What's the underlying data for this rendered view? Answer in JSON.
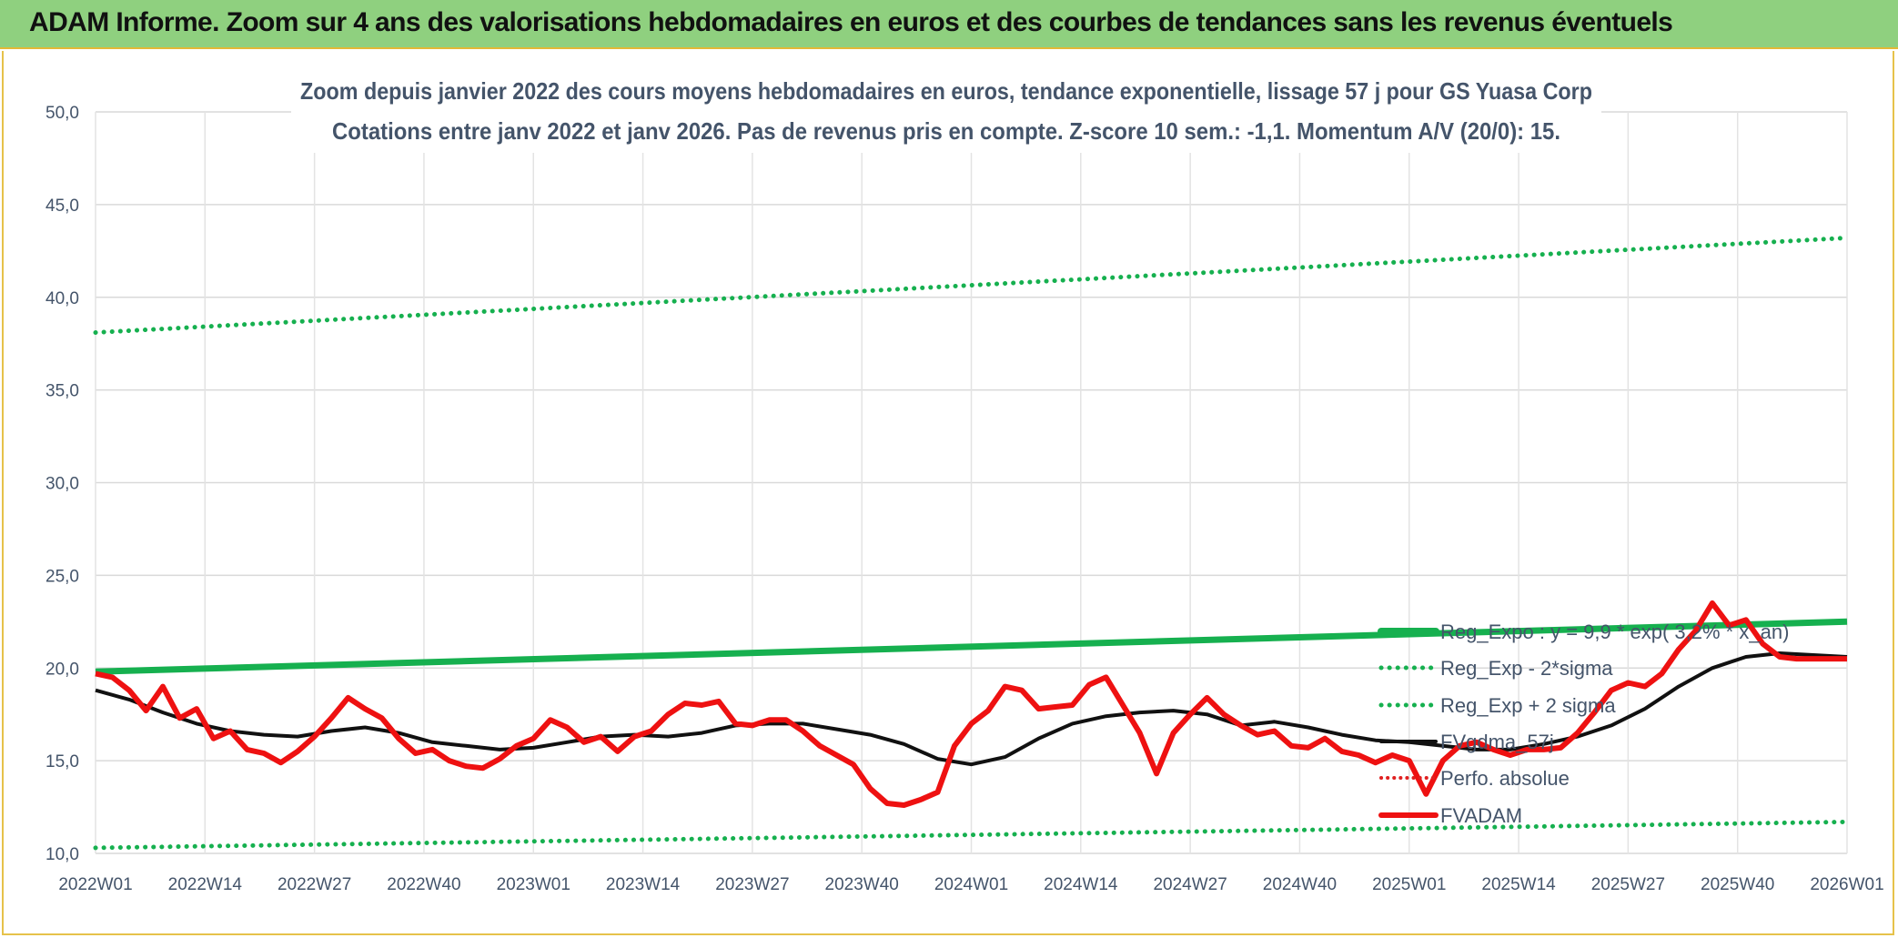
{
  "banner": {
    "title": "ADAM Informe. Zoom sur 4 ans des valorisations hebdomadaires en euros et des courbes de tendances sans les revenus éventuels"
  },
  "colors": {
    "banner": "#8fd07f",
    "regExpo": "#16b04f",
    "fvadam": "#ee1111",
    "mma": "#111111",
    "perfo": "#e02020",
    "text": "#44546a"
  },
  "chart_data": {
    "type": "line",
    "title": "Zoom depuis janvier 2022 des cours moyens hebdomadaires en euros, tendance exponentielle, lissage 57 j pour GS Yuasa Corp",
    "subtitle": "Cotations entre janv 2022 et janv 2026. Pas de revenus pris en compte. Z-score 10 sem.: -1,1. Momentum A/V (20/0): 15.",
    "xlabel": "",
    "ylabel": "",
    "ylim": [
      10,
      50
    ],
    "yticks": [
      "10,0",
      "15,0",
      "20,0",
      "25,0",
      "30,0",
      "35,0",
      "40,0",
      "45,0",
      "50,0"
    ],
    "xticks": [
      "2022W01",
      "2022W14",
      "2022W27",
      "2022W40",
      "2023W01",
      "2023W14",
      "2023W27",
      "2023W40",
      "2024W01",
      "2024W14",
      "2024W27",
      "2024W40",
      "2025W01",
      "2025W14",
      "2025W27",
      "2025W40",
      "2026W01"
    ],
    "grid": true,
    "legend": [
      "Reg_Expo : y = 9,9 * exp( 3,2% * x_an)",
      "Reg_Exp - 2*sigma",
      "Reg_Exp + 2 sigma",
      "FVgdma_57j",
      "Perfo. absolue",
      "FVADAM"
    ],
    "series": [
      {
        "name": "Reg_Expo : y = 9,9 * exp( 3,2% * x_an)",
        "style": "thick-solid",
        "x": [
          0,
          208
        ],
        "values": [
          19.8,
          22.5
        ]
      },
      {
        "name": "Reg_Exp - 2*sigma",
        "style": "dotted",
        "x": [
          0,
          208
        ],
        "values": [
          10.3,
          11.7
        ]
      },
      {
        "name": "Reg_Exp + 2 sigma",
        "style": "dotted",
        "x": [
          0,
          208
        ],
        "values": [
          38.1,
          43.2
        ]
      },
      {
        "name": "FVgdma_57j",
        "style": "solid",
        "x": [
          0,
          4,
          8,
          12,
          16,
          20,
          24,
          28,
          32,
          36,
          40,
          44,
          48,
          52,
          56,
          60,
          64,
          68,
          72,
          76,
          80,
          84,
          88,
          92,
          96,
          100,
          104,
          108,
          112,
          116,
          120,
          124,
          128,
          132,
          136,
          140,
          144,
          148,
          152,
          156,
          160,
          164,
          168,
          172,
          176,
          180,
          184,
          188,
          192,
          196,
          200,
          204,
          208
        ],
        "values": [
          18.8,
          18.3,
          17.6,
          17.0,
          16.6,
          16.4,
          16.3,
          16.6,
          16.8,
          16.5,
          16.0,
          15.8,
          15.6,
          15.7,
          16.0,
          16.3,
          16.4,
          16.3,
          16.5,
          16.9,
          17.0,
          17.0,
          16.7,
          16.4,
          15.9,
          15.1,
          14.8,
          15.2,
          16.2,
          17.0,
          17.4,
          17.6,
          17.7,
          17.5,
          16.9,
          17.1,
          16.8,
          16.4,
          16.1,
          16.0,
          15.8,
          15.6,
          15.6,
          15.9,
          16.3,
          16.9,
          17.8,
          19.0,
          20.0,
          20.6,
          20.8,
          20.7,
          20.6
        ]
      },
      {
        "name": "Perfo. absolue",
        "style": "dotted",
        "x": [],
        "values": []
      },
      {
        "name": "FVADAM",
        "style": "thick-solid",
        "x": [
          0,
          2,
          4,
          6,
          8,
          10,
          12,
          14,
          16,
          18,
          20,
          22,
          24,
          26,
          28,
          30,
          32,
          34,
          36,
          38,
          40,
          42,
          44,
          46,
          48,
          50,
          52,
          54,
          56,
          58,
          60,
          62,
          64,
          66,
          68,
          70,
          72,
          74,
          76,
          78,
          80,
          82,
          84,
          86,
          88,
          90,
          92,
          94,
          96,
          98,
          100,
          102,
          104,
          106,
          108,
          110,
          112,
          114,
          116,
          118,
          120,
          122,
          124,
          126,
          128,
          130,
          132,
          134,
          136,
          138,
          140,
          142,
          144,
          146,
          148,
          150,
          152,
          154,
          156,
          158,
          160,
          162,
          164,
          166,
          168,
          170,
          172,
          174,
          176,
          178,
          180,
          182,
          184,
          186,
          188,
          190,
          192,
          194,
          196,
          198,
          200,
          202,
          204,
          206,
          208
        ],
        "values": [
          19.7,
          19.5,
          18.8,
          17.7,
          19.0,
          17.3,
          17.8,
          16.2,
          16.6,
          15.6,
          15.4,
          14.9,
          15.5,
          16.3,
          17.3,
          18.4,
          17.8,
          17.3,
          16.2,
          15.4,
          15.6,
          15.0,
          14.7,
          14.6,
          15.1,
          15.8,
          16.2,
          17.2,
          16.8,
          16.0,
          16.3,
          15.5,
          16.3,
          16.6,
          17.5,
          18.1,
          18.0,
          18.2,
          17.0,
          16.9,
          17.2,
          17.2,
          16.6,
          15.8,
          15.3,
          14.8,
          13.5,
          12.7,
          12.6,
          12.9,
          13.3,
          15.8,
          17.0,
          17.7,
          19.0,
          18.8,
          17.8,
          17.9,
          18.0,
          19.1,
          19.5,
          18.0,
          16.5,
          14.3,
          16.5,
          17.5,
          18.4,
          17.5,
          16.9,
          16.4,
          16.6,
          15.8,
          15.7,
          16.2,
          15.5,
          15.3,
          14.9,
          15.3,
          15.0,
          13.2,
          15.0,
          15.8,
          16.0,
          15.6,
          15.3,
          15.6,
          15.6,
          15.7,
          16.5,
          17.6,
          18.8,
          19.2,
          19.0,
          19.7,
          21.0,
          22.0,
          23.5,
          22.3,
          22.6,
          21.3,
          20.6,
          20.5,
          20.5,
          20.5,
          20.5
        ]
      }
    ]
  }
}
